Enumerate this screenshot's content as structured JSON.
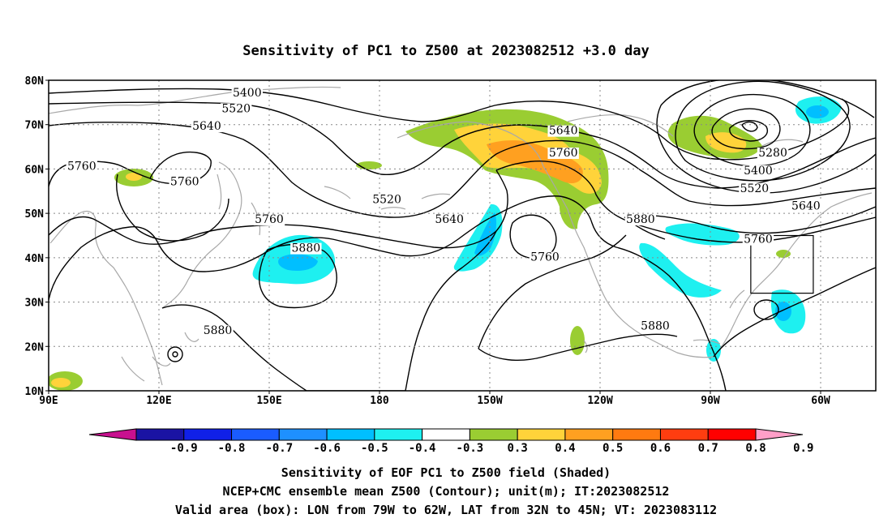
{
  "title": "Sensitivity of PC1 to Z500 at 2023082512 +3.0 day",
  "map": {
    "lon_range": [
      90,
      315
    ],
    "lat_range": [
      10,
      80
    ],
    "lat_ticks": [
      {
        "lat": 80,
        "label": "80N"
      },
      {
        "lat": 70,
        "label": "70N"
      },
      {
        "lat": 60,
        "label": "60N"
      },
      {
        "lat": 50,
        "label": "50N"
      },
      {
        "lat": 40,
        "label": "40N"
      },
      {
        "lat": 30,
        "label": "30N"
      },
      {
        "lat": 20,
        "label": "20N"
      },
      {
        "lat": 10,
        "label": "10N"
      }
    ],
    "lon_ticks": [
      {
        "lon": 90,
        "label": "90E"
      },
      {
        "lon": 120,
        "label": "120E"
      },
      {
        "lon": 150,
        "label": "150E"
      },
      {
        "lon": 180,
        "label": "180"
      },
      {
        "lon": 210,
        "label": "150W"
      },
      {
        "lon": 240,
        "label": "120W"
      },
      {
        "lon": 270,
        "label": "90W"
      },
      {
        "lon": 300,
        "label": "60W"
      }
    ],
    "valid_box": {
      "lon": [
        281,
        298
      ],
      "lat": [
        32,
        45
      ]
    },
    "contour_labels": [
      {
        "text": "5400",
        "lon": 144,
        "lat": 76.5
      },
      {
        "text": "5520",
        "lon": 141,
        "lat": 73
      },
      {
        "text": "5640",
        "lon": 133,
        "lat": 69
      },
      {
        "text": "5760",
        "lon": 99,
        "lat": 60
      },
      {
        "text": "5760",
        "lon": 127,
        "lat": 56.5
      },
      {
        "text": "5520",
        "lon": 182,
        "lat": 52.5
      },
      {
        "text": "5640",
        "lon": 199,
        "lat": 48
      },
      {
        "text": "5760",
        "lon": 150,
        "lat": 48
      },
      {
        "text": "5880",
        "lon": 160,
        "lat": 41.5
      },
      {
        "text": "5760",
        "lon": 225,
        "lat": 39.5
      },
      {
        "text": "5880",
        "lon": 136,
        "lat": 23
      },
      {
        "text": "5880",
        "lon": 255,
        "lat": 24
      },
      {
        "text": "5880",
        "lon": 251,
        "lat": 48
      },
      {
        "text": "5640",
        "lon": 230,
        "lat": 68
      },
      {
        "text": "5760",
        "lon": 230,
        "lat": 63
      },
      {
        "text": "5280",
        "lon": 287,
        "lat": 63
      },
      {
        "text": "5400",
        "lon": 283,
        "lat": 59
      },
      {
        "text": "5520",
        "lon": 282,
        "lat": 55
      },
      {
        "text": "5640",
        "lon": 296,
        "lat": 51
      },
      {
        "text": "5760",
        "lon": 283,
        "lat": 43.5
      }
    ]
  },
  "colorbar": {
    "colors": [
      "#c8108f",
      "#1a13a3",
      "#1020e8",
      "#1a5cff",
      "#1e90ff",
      "#00bfff",
      "#1ef0f0",
      "#ffffff",
      "#9acd32",
      "#ffd33a",
      "#ffa020",
      "#ff7a10",
      "#ff3d10",
      "#ff0000",
      "#ff9fc8"
    ],
    "labels": [
      "-0.9",
      "-0.8",
      "-0.7",
      "-0.6",
      "-0.5",
      "-0.4",
      "-0.3",
      "0.3",
      "0.4",
      "0.5",
      "0.6",
      "0.7",
      "0.8",
      "0.9"
    ]
  },
  "footer": {
    "line1": "Sensitivity of EOF PC1 to Z500 field (Shaded)",
    "line2": "NCEP+CMC ensemble mean Z500 (Contour); unit(m); IT:2023082512",
    "line3": "Valid area (box): LON from 79W to 62W, LAT from 32N to 45N; VT: 2023083112"
  }
}
